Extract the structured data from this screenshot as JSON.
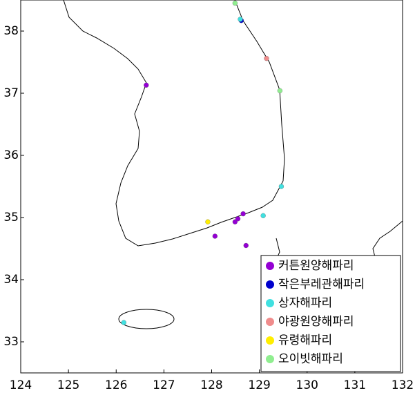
{
  "chart_data": {
    "type": "scatter",
    "xlim": [
      124,
      132
    ],
    "ylim": [
      32.5,
      38.5
    ],
    "xticks": [
      124,
      125,
      126,
      127,
      128,
      129,
      130,
      131,
      132
    ],
    "yticks": [
      33,
      34,
      35,
      36,
      37,
      38
    ],
    "legend": "lower right",
    "series": [
      {
        "name": "커튼원양해파리",
        "color": "#9400d3",
        "x": [
          126.63,
          128.07,
          128.49,
          128.55,
          128.66,
          128.72
        ],
        "y": [
          37.13,
          34.7,
          34.93,
          34.98,
          35.06,
          34.55
        ]
      },
      {
        "name": "작은부레관해파리",
        "color": "#0000cd",
        "x": [
          128.62
        ],
        "y": [
          38.17
        ]
      },
      {
        "name": "상자해파리",
        "color": "#40e0e0",
        "x": [
          129.46,
          129.08,
          126.16,
          128.6
        ],
        "y": [
          35.5,
          35.03,
          33.31,
          38.19
        ]
      },
      {
        "name": "야광원양해파리",
        "color": "#f08c8c",
        "x": [
          129.15
        ],
        "y": [
          37.56
        ]
      },
      {
        "name": "유령해파리",
        "color": "#ffee00",
        "x": [
          127.92
        ],
        "y": [
          34.93
        ]
      },
      {
        "name": "오이빗해파리",
        "color": "#90ee90",
        "x": [
          128.49,
          129.43
        ],
        "y": [
          38.45,
          37.04
        ]
      }
    ]
  }
}
